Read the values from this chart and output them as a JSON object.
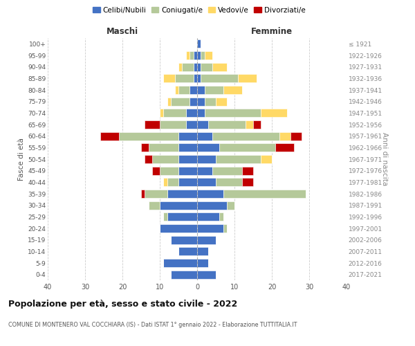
{
  "age_groups": [
    "0-4",
    "5-9",
    "10-14",
    "15-19",
    "20-24",
    "25-29",
    "30-34",
    "35-39",
    "40-44",
    "45-49",
    "50-54",
    "55-59",
    "60-64",
    "65-69",
    "70-74",
    "75-79",
    "80-84",
    "85-89",
    "90-94",
    "95-99",
    "100+"
  ],
  "birth_years": [
    "2017-2021",
    "2012-2016",
    "2007-2011",
    "2002-2006",
    "1997-2001",
    "1992-1996",
    "1987-1991",
    "1982-1986",
    "1977-1981",
    "1972-1976",
    "1967-1971",
    "1962-1966",
    "1957-1961",
    "1952-1956",
    "1947-1951",
    "1942-1946",
    "1937-1941",
    "1932-1936",
    "1927-1931",
    "1922-1926",
    "≤ 1921"
  ],
  "maschi": {
    "celibe": [
      7,
      9,
      5,
      7,
      10,
      8,
      10,
      8,
      5,
      5,
      5,
      5,
      5,
      3,
      3,
      2,
      2,
      1,
      1,
      1,
      0
    ],
    "coniugato": [
      0,
      0,
      0,
      0,
      0,
      1,
      3,
      6,
      3,
      5,
      7,
      8,
      16,
      7,
      6,
      5,
      3,
      5,
      3,
      1,
      0
    ],
    "vedovo": [
      0,
      0,
      0,
      0,
      0,
      0,
      0,
      0,
      1,
      0,
      0,
      0,
      0,
      0,
      1,
      1,
      1,
      3,
      1,
      1,
      0
    ],
    "divorziato": [
      0,
      0,
      0,
      0,
      0,
      0,
      0,
      1,
      0,
      2,
      2,
      2,
      5,
      4,
      0,
      0,
      0,
      0,
      0,
      0,
      0
    ]
  },
  "femmine": {
    "nubile": [
      5,
      3,
      3,
      5,
      7,
      6,
      8,
      7,
      5,
      4,
      5,
      6,
      4,
      3,
      2,
      2,
      2,
      1,
      1,
      1,
      1
    ],
    "coniugata": [
      0,
      0,
      0,
      0,
      1,
      1,
      2,
      22,
      7,
      8,
      12,
      15,
      18,
      10,
      15,
      3,
      5,
      10,
      3,
      1,
      0
    ],
    "vedova": [
      0,
      0,
      0,
      0,
      0,
      0,
      0,
      0,
      0,
      0,
      3,
      0,
      3,
      2,
      7,
      3,
      5,
      5,
      4,
      2,
      0
    ],
    "divorziata": [
      0,
      0,
      0,
      0,
      0,
      0,
      0,
      0,
      3,
      3,
      0,
      5,
      3,
      2,
      0,
      0,
      0,
      0,
      0,
      0,
      0
    ]
  },
  "colors": {
    "celibe": "#4472c4",
    "coniugato": "#b5c99a",
    "vedovo": "#ffd966",
    "divorziato": "#c00000"
  },
  "xlim": 40,
  "title": "Popolazione per età, sesso e stato civile - 2022",
  "subtitle": "COMUNE DI MONTENERO VAL COCCHIARA (IS) - Dati ISTAT 1° gennaio 2022 - Elaborazione TUTTITALIA.IT",
  "ylabel_left": "Fasce di età",
  "ylabel_right": "Anni di nascita",
  "xlabel_maschi": "Maschi",
  "xlabel_femmine": "Femmine",
  "bg_color": "#ffffff",
  "grid_color": "#cccccc"
}
